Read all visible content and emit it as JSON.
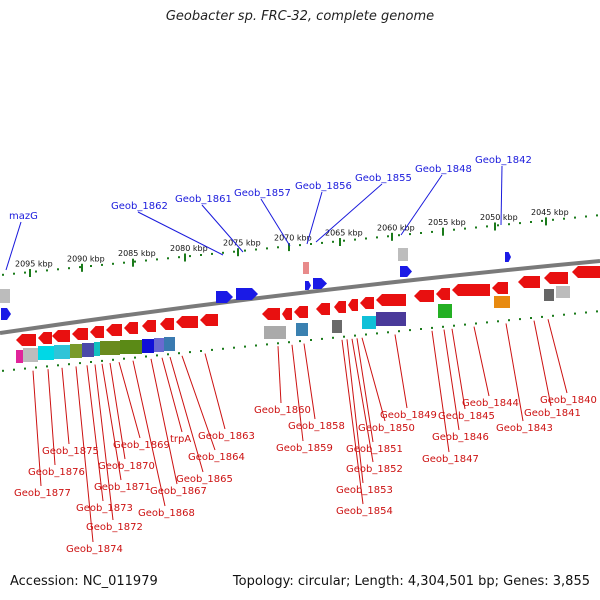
{
  "title": "Geobacter sp. FRC-32, complete genome",
  "footer": {
    "accession": "Accession: NC_011979",
    "summary": "Topology: circular; Length: 4,304,501 bp; Genes: 3,855"
  },
  "colors": {
    "top_label": "#1a1adc",
    "bottom_label": "#cc1111",
    "tick": "#1a7a1a",
    "backbone": "#7a7a7a"
  },
  "scale_ticks": [
    "2095 kbp",
    "2090 kbp",
    "2085 kbp",
    "2080 kbp",
    "2075 kbp",
    "2070 kbp",
    "2065 kbp",
    "2060 kbp",
    "2055 kbp",
    "2050 kbp",
    "2045 kbp"
  ],
  "top_labels": [
    "mazG",
    "Geob_1862",
    "Geob_1861",
    "Geob_1857",
    "Geob_1856",
    "Geob_1855",
    "Geob_1848",
    "Geob_1842"
  ],
  "bottom_labels": [
    "Geob_1877",
    "Geob_1876",
    "Geob_1875",
    "Geob_1874",
    "Geob_1873",
    "Geob_1872",
    "Geob_1871",
    "Geob_1870",
    "Geob_1869",
    "Geob_1868",
    "Geob_1867",
    "trpA",
    "Geob_1865",
    "Geob_1864",
    "Geob_1863",
    "Geob_1860",
    "Geob_1859",
    "Geob_1858",
    "Geob_1854",
    "Geob_1853",
    "Geob_1852",
    "Geob_1851",
    "Geob_1850",
    "Geob_1849",
    "Geob_1847",
    "Geob_1846",
    "Geob_1845",
    "Geob_1844",
    "Geob_1843",
    "Geob_1841",
    "Geob_1840"
  ]
}
